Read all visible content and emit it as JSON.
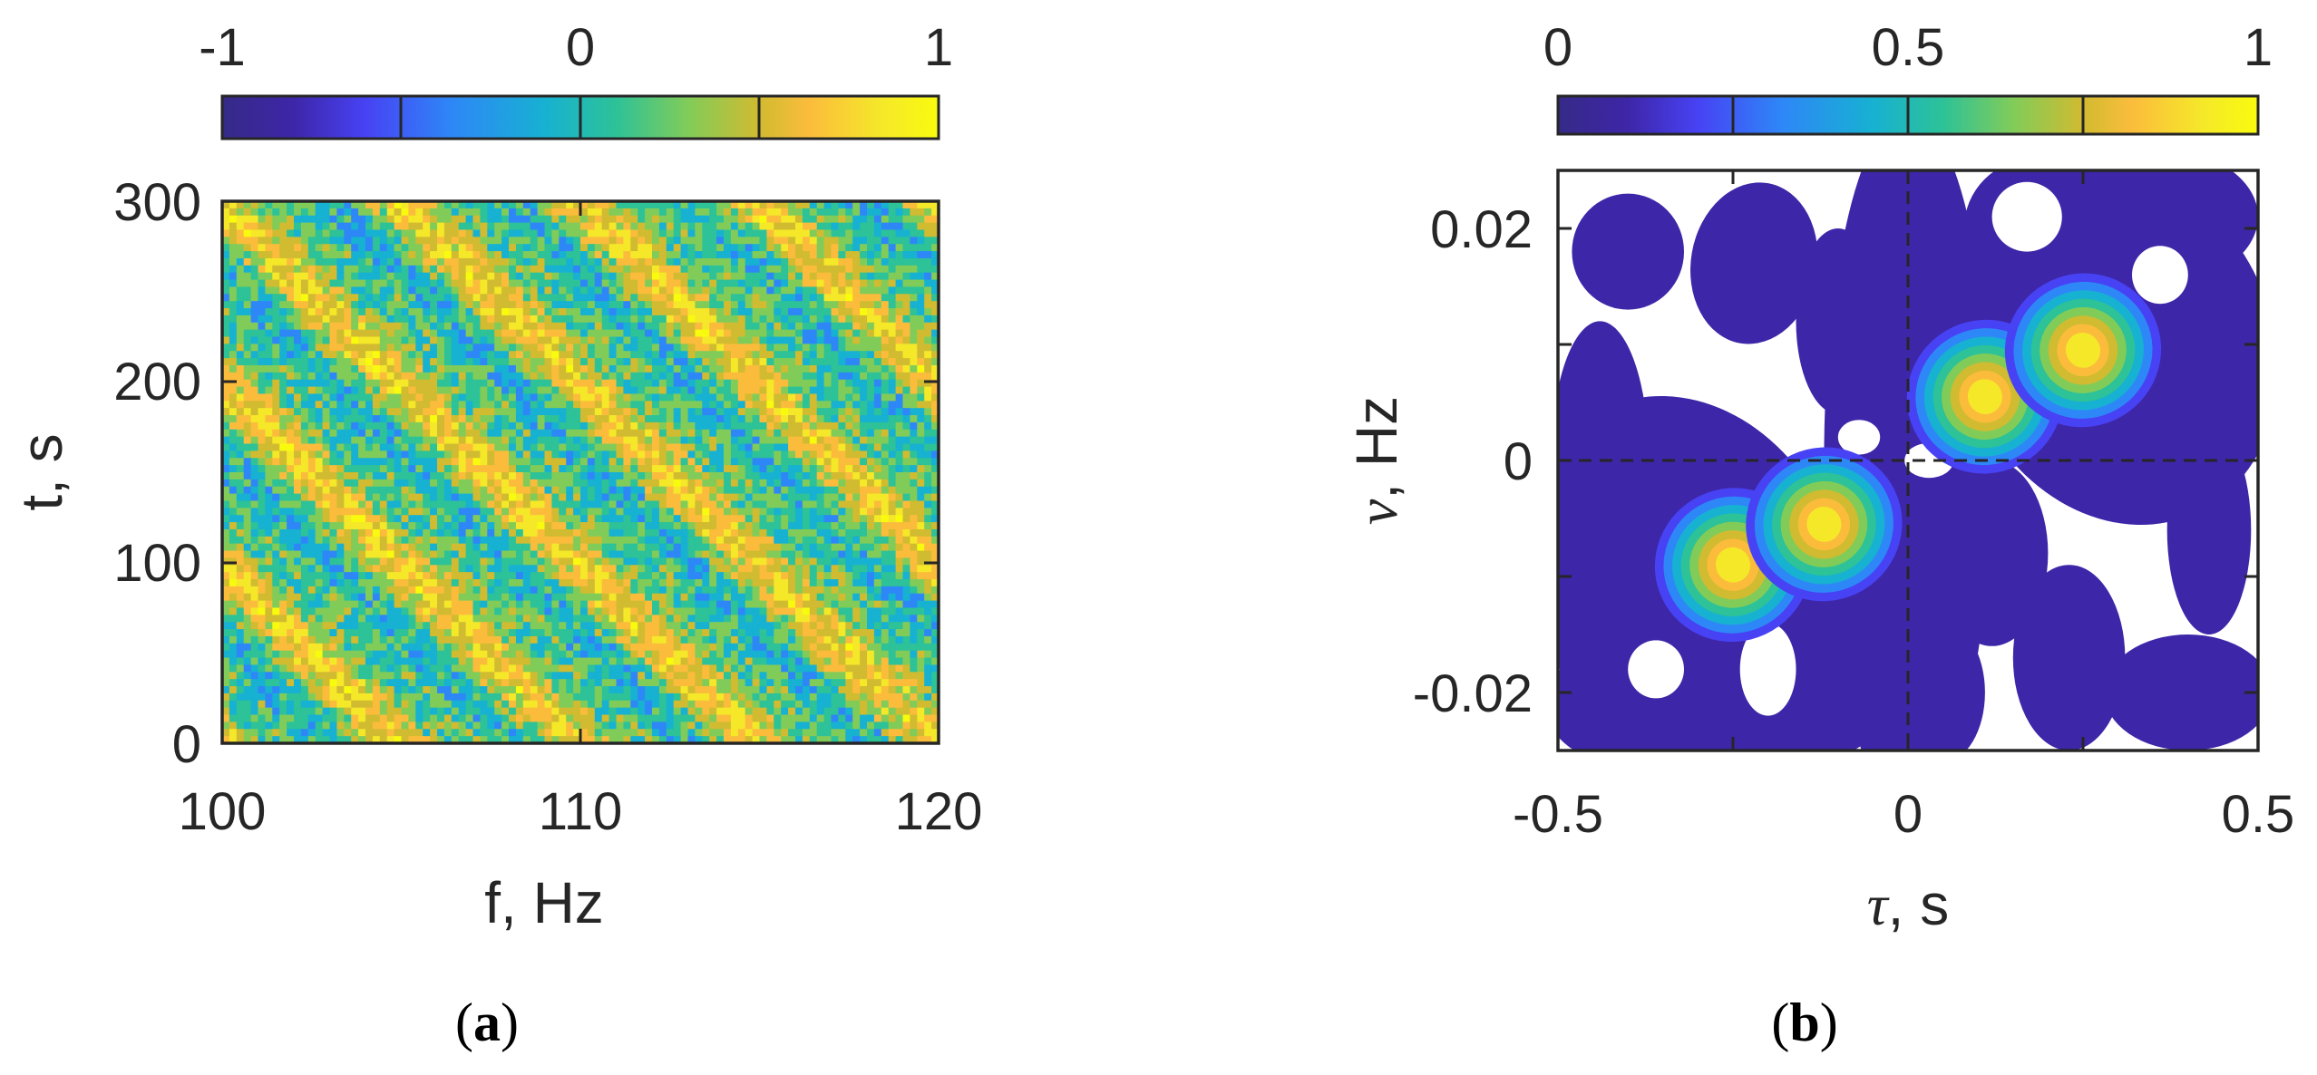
{
  "colors": {
    "parula": [
      "#3e26a8",
      "#4742f4",
      "#2e87f7",
      "#17b1d2",
      "#2dc297",
      "#81cc59",
      "#d1bb30",
      "#fbbc3c",
      "#f5e829",
      "#f9fb0e"
    ],
    "axis": "#262626",
    "background": "#ffffff"
  },
  "chart_data": [
    {
      "type": "heatmap",
      "panel_label_open": "(",
      "panel_label": "a",
      "panel_label_close": ")",
      "title": "",
      "xlabel": "f, Hz",
      "ylabel": "t, s",
      "xlim": [
        100,
        120
      ],
      "ylim": [
        0,
        300
      ],
      "xticks": [
        "100",
        "110",
        "120"
      ],
      "yticks": [
        "0",
        "100",
        "200",
        "300"
      ],
      "colorbar": {
        "location": "top",
        "limits": [
          -1,
          1
        ],
        "ticks": [
          "-1",
          "0",
          "1"
        ],
        "divisions": [
          -0.5,
          0,
          0.5
        ]
      },
      "description_data": {
        "stripe_slope_hz_per_s": -0.05,
        "stripe_spacing_hz": 5,
        "stripe_positions_at_t0_hz": [
          100,
          105,
          110,
          115
        ],
        "value_range": [
          -1,
          1
        ]
      }
    },
    {
      "type": "contour",
      "panel_label_open": "(",
      "panel_label": "b",
      "panel_label_close": ")",
      "title": "",
      "xlabel_symbol": "τ",
      "xlabel_unit": ", s",
      "ylabel_symbol": "ν",
      "ylabel_unit": ", Hz",
      "xlim": [
        -0.5,
        0.5
      ],
      "ylim": [
        -0.025,
        0.025
      ],
      "xticks": [
        "-0.5",
        "0",
        "0.5"
      ],
      "yticks": [
        "-0.02",
        "0",
        "0.02"
      ],
      "colorbar": {
        "location": "top",
        "limits": [
          0,
          1
        ],
        "ticks": [
          "0",
          "0.5",
          "1"
        ],
        "divisions": [
          0.25,
          0.5,
          0.75
        ]
      },
      "reference_lines": {
        "x": 0,
        "y": 0,
        "style": "dashed"
      },
      "peaks": [
        {
          "tau": -0.25,
          "nu": -0.009,
          "value": 0.95
        },
        {
          "tau": -0.12,
          "nu": -0.0055,
          "value": 1.0
        },
        {
          "tau": 0.11,
          "nu": 0.0055,
          "value": 1.0
        },
        {
          "tau": 0.25,
          "nu": 0.0095,
          "value": 0.95
        }
      ]
    }
  ]
}
